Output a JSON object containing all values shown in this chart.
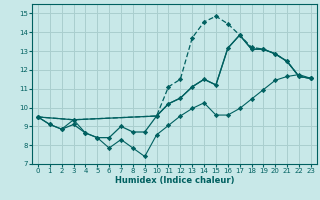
{
  "xlabel": "Humidex (Indice chaleur)",
  "xlim": [
    -0.5,
    23.5
  ],
  "ylim": [
    7,
    15.5
  ],
  "yticks": [
    7,
    8,
    9,
    10,
    11,
    12,
    13,
    14,
    15
  ],
  "xticks": [
    0,
    1,
    2,
    3,
    4,
    5,
    6,
    7,
    8,
    9,
    10,
    11,
    12,
    13,
    14,
    15,
    16,
    17,
    18,
    19,
    20,
    21,
    22,
    23
  ],
  "bg_color": "#c8e8e8",
  "grid_color": "#aacece",
  "line_color": "#006060",
  "line1_x": [
    0,
    1,
    2,
    3,
    4,
    5,
    6,
    7,
    8,
    9,
    10,
    11,
    12,
    13,
    14,
    15,
    16,
    17,
    18,
    19,
    20,
    21,
    22,
    23
  ],
  "line1_y": [
    9.5,
    9.1,
    8.85,
    9.35,
    8.65,
    8.4,
    7.85,
    8.3,
    7.85,
    7.4,
    8.55,
    9.05,
    9.55,
    9.95,
    10.25,
    9.6,
    9.6,
    9.95,
    10.45,
    10.95,
    11.45,
    11.65,
    11.75,
    11.55
  ],
  "line2_x": [
    0,
    3,
    10,
    11,
    12,
    13,
    14,
    15,
    16,
    17,
    18,
    19,
    20,
    21,
    22,
    23
  ],
  "line2_y": [
    9.5,
    9.35,
    9.55,
    10.2,
    10.5,
    11.1,
    11.5,
    11.2,
    13.15,
    13.85,
    13.1,
    13.1,
    12.85,
    12.45,
    11.65,
    11.55
  ],
  "line3_x": [
    0,
    3,
    10,
    11,
    12,
    13,
    14,
    15,
    16,
    17,
    18,
    19,
    20,
    21,
    22,
    23
  ],
  "line3_y": [
    9.5,
    9.35,
    9.55,
    11.1,
    11.5,
    13.7,
    14.55,
    14.85,
    14.45,
    13.85,
    13.2,
    13.1,
    12.85,
    12.45,
    11.65,
    11.55
  ],
  "line4_x": [
    0,
    1,
    2,
    3,
    4,
    5,
    6,
    7,
    8,
    9,
    10,
    11,
    12,
    13,
    14,
    15,
    16,
    17,
    18,
    19,
    20,
    21,
    22,
    23
  ],
  "line4_y": [
    9.5,
    9.1,
    8.85,
    9.1,
    8.65,
    8.4,
    8.4,
    9.0,
    8.7,
    8.7,
    9.55,
    10.2,
    10.5,
    11.1,
    11.5,
    11.2,
    13.15,
    13.85,
    13.1,
    13.1,
    12.85,
    12.45,
    11.65,
    11.55
  ]
}
